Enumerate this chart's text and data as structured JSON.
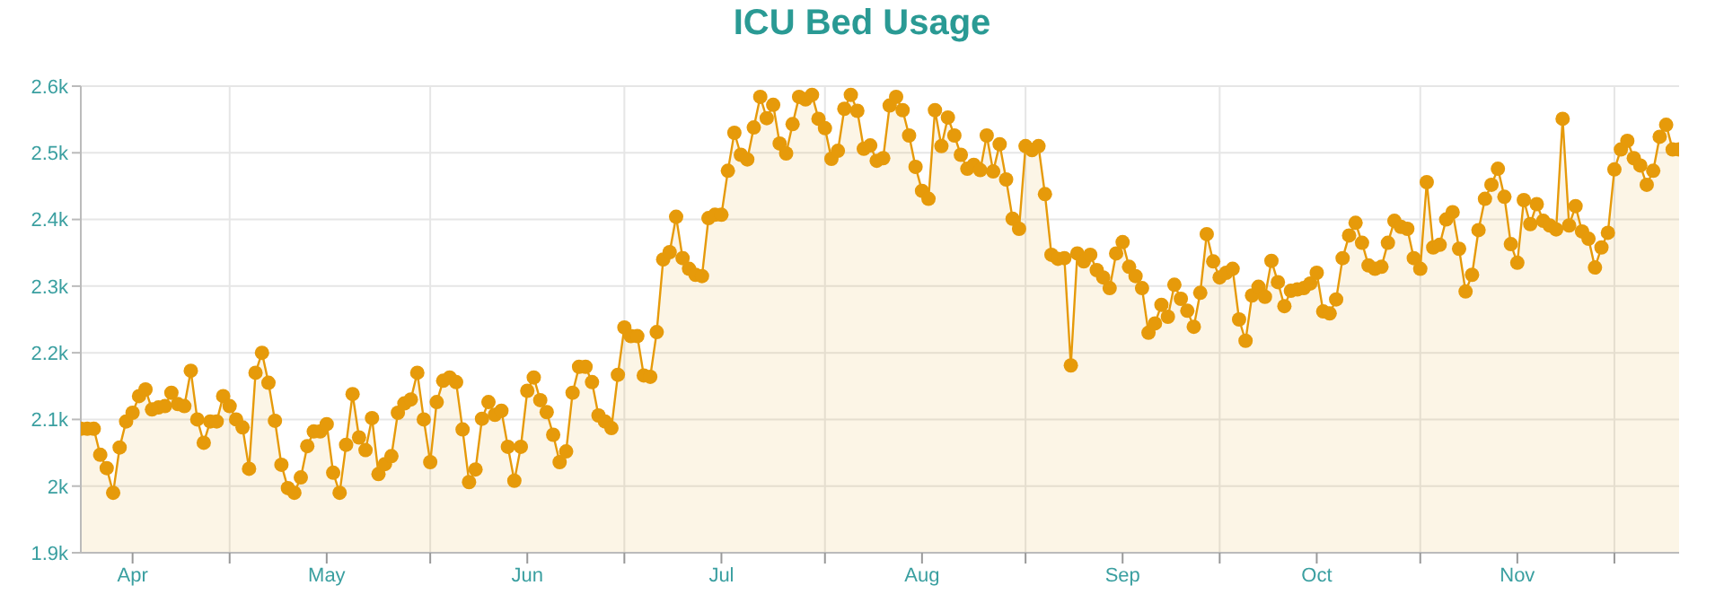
{
  "chart_data": {
    "type": "area",
    "title": "ICU Bed Usage",
    "marker": "circle",
    "line_style": "solid",
    "grid": true,
    "x": [
      "--04-08",
      "--04-09",
      "--04-10",
      "--04-11",
      "--04-12",
      "--04-13",
      "--04-14",
      "--04-15",
      "--04-16",
      "--04-17",
      "--04-18",
      "--04-19",
      "--04-20",
      "--04-21",
      "--04-22",
      "--04-23",
      "--04-24",
      "--04-25",
      "--04-26",
      "--04-27",
      "--04-28",
      "--04-29",
      "--04-30",
      "--05-01",
      "--05-02",
      "--05-03",
      "--05-04",
      "--05-05",
      "--05-06",
      "--05-07",
      "--05-08",
      "--05-09",
      "--05-10",
      "--05-11",
      "--05-12",
      "--05-13",
      "--05-14",
      "--05-15",
      "--05-16",
      "--05-17",
      "--05-18",
      "--05-19",
      "--05-20",
      "--05-21",
      "--05-22",
      "--05-23",
      "--05-24",
      "--05-25",
      "--05-26",
      "--05-27",
      "--05-28",
      "--05-29",
      "--05-30",
      "--05-31",
      "--06-01",
      "--06-02",
      "--06-03",
      "--06-04",
      "--06-05",
      "--06-06",
      "--06-07",
      "--06-08",
      "--06-09",
      "--06-10",
      "--06-11",
      "--06-12",
      "--06-13",
      "--06-14",
      "--06-15",
      "--06-16",
      "--06-17",
      "--06-18",
      "--06-19",
      "--06-20",
      "--06-21",
      "--06-22",
      "--06-23",
      "--06-24",
      "--06-25",
      "--06-26",
      "--06-27",
      "--06-28",
      "--06-29",
      "--06-30",
      "--07-01",
      "--07-02",
      "--07-03",
      "--07-04",
      "--07-05",
      "--07-06",
      "--07-07",
      "--07-08",
      "--07-09",
      "--07-10",
      "--07-11",
      "--07-12",
      "--07-13",
      "--07-14",
      "--07-15",
      "--07-16",
      "--07-17",
      "--07-18",
      "--07-19",
      "--07-20",
      "--07-21",
      "--07-22",
      "--07-23",
      "--07-24",
      "--07-25",
      "--07-26",
      "--07-27",
      "--07-28",
      "--07-29",
      "--07-30",
      "--07-31",
      "--08-01",
      "--08-02",
      "--08-03",
      "--08-04",
      "--08-05",
      "--08-06",
      "--08-07",
      "--08-08",
      "--08-09",
      "--08-10",
      "--08-11",
      "--08-12",
      "--08-13",
      "--08-14",
      "--08-15",
      "--08-16",
      "--08-17",
      "--08-18",
      "--08-19",
      "--08-20",
      "--08-21",
      "--08-22",
      "--08-23",
      "--08-24",
      "--08-25",
      "--08-26",
      "--08-27",
      "--08-28",
      "--08-29",
      "--08-30",
      "--08-31",
      "--09-01",
      "--09-02",
      "--09-03",
      "--09-04",
      "--09-05",
      "--09-06",
      "--09-07",
      "--09-08",
      "--09-09",
      "--09-10",
      "--09-11",
      "--09-12",
      "--09-13",
      "--09-14",
      "--09-15",
      "--09-16",
      "--09-17",
      "--09-18",
      "--09-19",
      "--09-20",
      "--09-21",
      "--09-22",
      "--09-23",
      "--09-24",
      "--09-25",
      "--09-26",
      "--09-27",
      "--09-28",
      "--09-29",
      "--09-30",
      "--10-01",
      "--10-02",
      "--10-03",
      "--10-04",
      "--10-05",
      "--10-06",
      "--10-07",
      "--10-08",
      "--10-09",
      "--10-10",
      "--10-11",
      "--10-12",
      "--10-13",
      "--10-14",
      "--10-15",
      "--10-16",
      "--10-17",
      "--10-18",
      "--10-19",
      "--10-20",
      "--10-21",
      "--10-22",
      "--10-23",
      "--10-24",
      "--10-25",
      "--10-26",
      "--10-27",
      "--10-28",
      "--10-29",
      "--10-30",
      "--10-31",
      "--11-01",
      "--11-02",
      "--11-03",
      "--11-04",
      "--11-05",
      "--11-06",
      "--11-07",
      "--11-08",
      "--11-09",
      "--11-10",
      "--11-11",
      "--11-12",
      "--11-13",
      "--11-14",
      "--11-15",
      "--11-16",
      "--11-17",
      "--11-18",
      "--11-19",
      "--11-20",
      "--11-21",
      "--11-22",
      "--11-23",
      "--11-24",
      "--11-25",
      "--11-26",
      "--11-27",
      "--11-28",
      "--11-29",
      "--11-30",
      "--12-01",
      "--12-02",
      "--12-03",
      "--12-04",
      "--12-05",
      "--12-06",
      "--12-07",
      "--12-08",
      "--12-09",
      "--12-10",
      "--12-11"
    ],
    "series": [
      {
        "color": "#e69a0a",
        "values": [
          2086,
          2086,
          2086,
          2047,
          2027,
          1990,
          2058,
          2097,
          2110,
          2135,
          2145,
          2115,
          2118,
          2120,
          2140,
          2123,
          2120,
          2173,
          2100,
          2065,
          2097,
          2097,
          2135,
          2120,
          2100,
          2088,
          2026,
          2170,
          2200,
          2155,
          2098,
          2032,
          1997,
          1990,
          2013,
          2060,
          2082,
          2082,
          2093,
          2020,
          1990,
          2062,
          2138,
          2073,
          2054,
          2102,
          2018,
          2033,
          2045,
          2110,
          2124,
          2130,
          2170,
          2100,
          2036,
          2126,
          2158,
          2163,
          2156,
          2085,
          2006,
          2025,
          2101,
          2126,
          2107,
          2113,
          2059,
          2008,
          2059,
          2143,
          2163,
          2129,
          2111,
          2077,
          2036,
          2052,
          2140,
          2179,
          2179,
          2156,
          2106,
          2097,
          2087,
          2167,
          2238,
          2225,
          2225,
          2166,
          2164,
          2231,
          2340,
          2351,
          2404,
          2342,
          2326,
          2317,
          2315,
          2402,
          2407,
          2407,
          2473,
          2530,
          2497,
          2490,
          2538,
          2584,
          2552,
          2572,
          2514,
          2499,
          2543,
          2584,
          2580,
          2587,
          2551,
          2537,
          2491,
          2503,
          2566,
          2587,
          2563,
          2506,
          2511,
          2488,
          2492,
          2571,
          2584,
          2564,
          2526,
          2479,
          2443,
          2431,
          2564,
          2510,
          2553,
          2526,
          2497,
          2476,
          2482,
          2474,
          2526,
          2472,
          2513,
          2460,
          2401,
          2386,
          2510,
          2504,
          2510,
          2438,
          2347,
          2341,
          2342,
          2181,
          2349,
          2337,
          2347,
          2324,
          2313,
          2297,
          2349,
          2366,
          2329,
          2315,
          2297,
          2230,
          2244,
          2272,
          2254,
          2302,
          2281,
          2263,
          2239,
          2290,
          2378,
          2337,
          2313,
          2320,
          2326,
          2250,
          2218,
          2286,
          2299,
          2284,
          2338,
          2306,
          2270,
          2293,
          2295,
          2297,
          2304,
          2320,
          2262,
          2259,
          2280,
          2342,
          2376,
          2395,
          2365,
          2331,
          2326,
          2329,
          2365,
          2398,
          2389,
          2386,
          2342,
          2326,
          2456,
          2358,
          2362,
          2400,
          2411,
          2356,
          2292,
          2317,
          2384,
          2431,
          2452,
          2476,
          2434,
          2363,
          2335,
          2429,
          2393,
          2423,
          2398,
          2391,
          2385,
          2551,
          2391,
          2420,
          2382,
          2371,
          2328,
          2358,
          2380,
          2475,
          2505,
          2518,
          2492,
          2481,
          2452,
          2473,
          2524,
          2542,
          2505,
          2505
        ]
      }
    ],
    "xlim": [
      "--04-08",
      "--12-11"
    ],
    "xticks": [
      {
        "value": "--04-16",
        "label": "Apr"
      },
      {
        "value": "--05-01",
        "label": null
      },
      {
        "value": "--05-16",
        "label": "May"
      },
      {
        "value": "--06-01",
        "label": null
      },
      {
        "value": "--06-16",
        "label": "Jun"
      },
      {
        "value": "--07-01",
        "label": null
      },
      {
        "value": "--07-16",
        "label": "Jul"
      },
      {
        "value": "--08-01",
        "label": null
      },
      {
        "value": "--08-16",
        "label": "Aug"
      },
      {
        "value": "--09-01",
        "label": null
      },
      {
        "value": "--09-16",
        "label": "Sep"
      },
      {
        "value": "--10-01",
        "label": null
      },
      {
        "value": "--10-16",
        "label": "Oct"
      },
      {
        "value": "--11-01",
        "label": null
      },
      {
        "value": "--11-16",
        "label": "Nov"
      },
      {
        "value": "--12-01",
        "label": null
      }
    ],
    "ylim": [
      1900,
      2600
    ],
    "yticks": [
      {
        "value": 1900,
        "label": "1.9k"
      },
      {
        "value": 2000,
        "label": "2k"
      },
      {
        "value": 2100,
        "label": "2.1k"
      },
      {
        "value": 2200,
        "label": "2.2k"
      },
      {
        "value": 2300,
        "label": "2.3k"
      },
      {
        "value": 2400,
        "label": "2.4k"
      },
      {
        "value": 2500,
        "label": "2.5k"
      },
      {
        "value": 2600,
        "label": "2.6k"
      }
    ]
  }
}
